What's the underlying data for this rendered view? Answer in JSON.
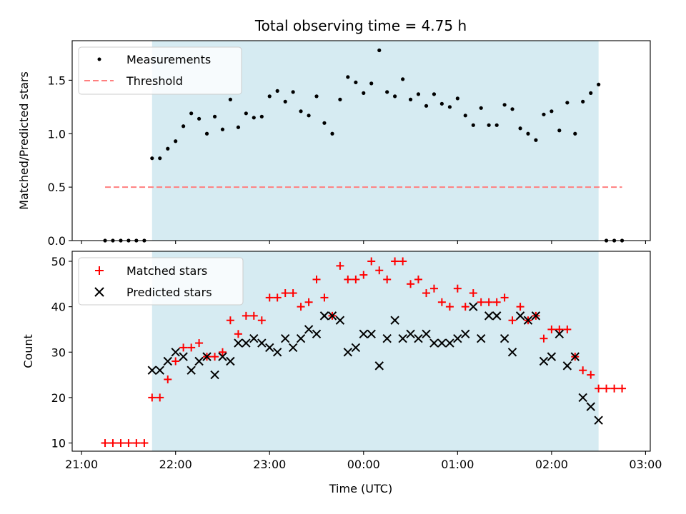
{
  "chart_data": [
    {
      "type": "scatter",
      "panel": "top",
      "title": "Total observing time = 4.75 h",
      "xlabel": "",
      "ylabel": "Matched/Predicted stars",
      "x_unit": "hours after 21:00 UTC",
      "xlim": [
        -0.1,
        6.05
      ],
      "ylim": [
        0.0,
        1.87
      ],
      "yticks": [
        0.0,
        0.5,
        1.0,
        1.5
      ],
      "ytick_labels": [
        "0.0",
        "0.5",
        "1.0",
        "1.5"
      ],
      "grid": false,
      "legend_position": "upper-left",
      "shaded_region": {
        "x": [
          0.75,
          5.5
        ],
        "color": "#add8e6"
      },
      "series": [
        {
          "name": "Measurements",
          "marker": "dot",
          "color": "#000000",
          "x": [
            0.25,
            0.333,
            0.417,
            0.5,
            0.583,
            0.667,
            0.75,
            0.833,
            0.917,
            1.0,
            1.083,
            1.167,
            1.25,
            1.333,
            1.417,
            1.5,
            1.583,
            1.667,
            1.75,
            1.833,
            1.917,
            2.0,
            2.083,
            2.167,
            2.25,
            2.333,
            2.417,
            2.5,
            2.583,
            2.667,
            2.75,
            2.833,
            2.917,
            3.0,
            3.083,
            3.167,
            3.25,
            3.333,
            3.417,
            3.5,
            3.583,
            3.667,
            3.75,
            3.833,
            3.917,
            4.0,
            4.083,
            4.167,
            4.25,
            4.333,
            4.417,
            4.5,
            4.583,
            4.667,
            4.75,
            4.833,
            4.917,
            5.0,
            5.083,
            5.167,
            5.25,
            5.333,
            5.417,
            5.5,
            5.583,
            5.667,
            5.75
          ],
          "values": [
            0,
            0,
            0,
            0,
            0,
            0,
            0.77,
            0.77,
            0.86,
            0.93,
            1.07,
            1.19,
            1.14,
            1.0,
            1.16,
            1.04,
            1.32,
            1.06,
            1.19,
            1.15,
            1.16,
            1.35,
            1.4,
            1.3,
            1.39,
            1.21,
            1.17,
            1.35,
            1.1,
            1.0,
            1.32,
            1.53,
            1.48,
            1.38,
            1.47,
            1.78,
            1.39,
            1.35,
            1.51,
            1.32,
            1.37,
            1.26,
            1.37,
            1.28,
            1.25,
            1.33,
            1.17,
            1.08,
            1.24,
            1.08,
            1.08,
            1.27,
            1.23,
            1.05,
            1.0,
            0.94,
            1.18,
            1.21,
            1.03,
            1.29,
            1.0,
            1.3,
            1.38,
            1.46,
            0,
            0,
            0
          ]
        },
        {
          "name": "Threshold",
          "marker": "dashed-line",
          "color": "#ff7f7f",
          "x": [
            0.25,
            5.75
          ],
          "values": [
            0.5,
            0.5
          ]
        }
      ]
    },
    {
      "type": "scatter",
      "panel": "bottom",
      "title": "",
      "xlabel": "Time (UTC)",
      "ylabel": "Count",
      "x_unit": "hours after 21:00 UTC",
      "xlim": [
        -0.1,
        6.05
      ],
      "ylim": [
        8.2,
        52.2
      ],
      "yticks": [
        10,
        20,
        30,
        40,
        50
      ],
      "ytick_labels": [
        "10",
        "20",
        "30",
        "40",
        "50"
      ],
      "xticks": [
        0,
        1,
        2,
        3,
        4,
        5,
        6
      ],
      "xtick_labels": [
        "21:00",
        "22:00",
        "23:00",
        "00:00",
        "01:00",
        "02:00",
        "03:00"
      ],
      "grid": false,
      "legend_position": "upper-left",
      "shaded_region": {
        "x": [
          0.75,
          5.5
        ],
        "color": "#add8e6"
      },
      "series": [
        {
          "name": "Matched stars",
          "marker": "plus",
          "color": "#ff0000",
          "x": [
            0.25,
            0.333,
            0.417,
            0.5,
            0.583,
            0.667,
            0.75,
            0.833,
            0.917,
            1.0,
            1.083,
            1.167,
            1.25,
            1.333,
            1.417,
            1.5,
            1.583,
            1.667,
            1.75,
            1.833,
            1.917,
            2.0,
            2.083,
            2.167,
            2.25,
            2.333,
            2.417,
            2.5,
            2.583,
            2.667,
            2.75,
            2.833,
            2.917,
            3.0,
            3.083,
            3.167,
            3.25,
            3.333,
            3.417,
            3.5,
            3.583,
            3.667,
            3.75,
            3.833,
            3.917,
            4.0,
            4.083,
            4.167,
            4.25,
            4.333,
            4.417,
            4.5,
            4.583,
            4.667,
            4.75,
            4.833,
            4.917,
            5.0,
            5.083,
            5.167,
            5.25,
            5.333,
            5.417,
            5.5,
            5.583,
            5.667,
            5.75
          ],
          "values": [
            10,
            10,
            10,
            10,
            10,
            10,
            20,
            20,
            24,
            28,
            31,
            31,
            32,
            29,
            29,
            30,
            37,
            34,
            38,
            38,
            37,
            42,
            42,
            43,
            43,
            40,
            41,
            46,
            42,
            38,
            49,
            46,
            46,
            47,
            50,
            48,
            46,
            50,
            50,
            45,
            46,
            43,
            44,
            41,
            40,
            44,
            40,
            43,
            41,
            41,
            41,
            42,
            37,
            40,
            37,
            38,
            33,
            35,
            35,
            35,
            29,
            26,
            25,
            22,
            22,
            22,
            22
          ]
        },
        {
          "name": "Predicted stars",
          "marker": "x",
          "color": "#000000",
          "x": [
            0.75,
            0.833,
            0.917,
            1.0,
            1.083,
            1.167,
            1.25,
            1.333,
            1.417,
            1.5,
            1.583,
            1.667,
            1.75,
            1.833,
            1.917,
            2.0,
            2.083,
            2.167,
            2.25,
            2.333,
            2.417,
            2.5,
            2.583,
            2.667,
            2.75,
            2.833,
            2.917,
            3.0,
            3.083,
            3.167,
            3.25,
            3.333,
            3.417,
            3.5,
            3.583,
            3.667,
            3.75,
            3.833,
            3.917,
            4.0,
            4.083,
            4.167,
            4.25,
            4.333,
            4.417,
            4.5,
            4.583,
            4.667,
            4.75,
            4.833,
            4.917,
            5.0,
            5.083,
            5.167,
            5.25,
            5.333,
            5.417,
            5.5
          ],
          "values": [
            26,
            26,
            28,
            30,
            29,
            26,
            28,
            29,
            25,
            29,
            28,
            32,
            32,
            33,
            32,
            31,
            30,
            33,
            31,
            33,
            35,
            34,
            38,
            38,
            37,
            30,
            31,
            34,
            34,
            27,
            33,
            37,
            33,
            34,
            33,
            34,
            32,
            32,
            32,
            33,
            34,
            40,
            33,
            38,
            38,
            33,
            30,
            38,
            37,
            38,
            28,
            29,
            34,
            27,
            29,
            20,
            18,
            15
          ]
        }
      ]
    }
  ]
}
